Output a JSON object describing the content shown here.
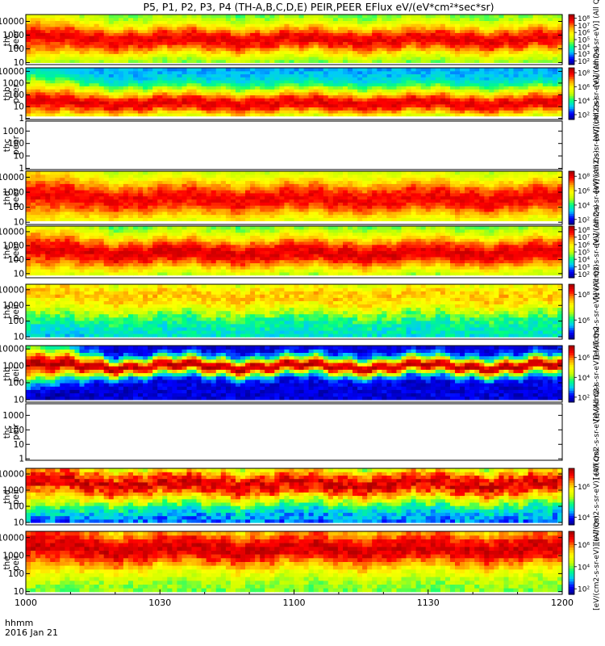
{
  "chart_data": {
    "type": "heatmap",
    "title": "P5, P1, P2, P3, P4 (TH-A,B,C,D,E) PEIR,PEER EFlux eV/(eV*cm²*sec*sr)",
    "x_axis": {
      "label_line1": "hhmm",
      "label_line2": "2016 Jan 21",
      "ticks": [
        "1000",
        "1030",
        "1100",
        "1130",
        "1200"
      ],
      "range_minutes": [
        0,
        120
      ]
    },
    "colorbar_units_lines": [
      "[eV/(cm2-s-sr-eV)] (All Qs)",
      "[eV/(cm2-s-sr-eV)] (All Qs)",
      "[eV/(cm2-s-sr-eV)] (All Qs)",
      "[eV/(cm2-s-sr-eV)] (All Qs)",
      "[eV/(cm2-s-sr-eV)] (All Qs)",
      "[eV/(cm2-s-sr-eV)] (All Qs)",
      "[eV/(cm2-s-sr-eV)] (All Qs)",
      "[eV/(cm2-s-sr-eV)] (All Qs)",
      "[eV/(cm2-s-sr-eV)] (All Qs)",
      "[eV/(cm2-s-sr-eV)] (All Qs)"
    ],
    "colormap": [
      "#000080",
      "#0000ff",
      "#00c8ff",
      "#00ff80",
      "#c8ff00",
      "#ffff00",
      "#ffa000",
      "#ff0000",
      "#a00000"
    ],
    "panels": [
      {
        "id": "thc-peer",
        "probe": "thc",
        "species": "peer",
        "y_ticks": [
          [
            "10000",
            4
          ],
          [
            "1000",
            3
          ],
          [
            "100",
            2
          ],
          [
            "10",
            1
          ]
        ],
        "y_range_log": [
          0.85,
          4.5
        ],
        "cbar_ticks": [
          [
            "10⁸",
            8
          ],
          [
            "10⁷",
            7
          ],
          [
            "10⁶",
            6
          ],
          [
            "10⁵",
            5
          ],
          [
            "10⁴",
            4
          ],
          [
            "10³",
            3
          ],
          [
            "10²",
            2
          ]
        ],
        "cbar_range": [
          1.5,
          8.5
        ],
        "has_data": true,
        "peak_level": 7.8,
        "peak_logE": 2.7,
        "width": 1.2,
        "low_band": 4.2,
        "floor_logE": 1.0
      },
      {
        "id": "thb-peer",
        "probe": "thb",
        "species": "peer",
        "y_ticks": [
          [
            "10000",
            4
          ],
          [
            "1000",
            3
          ],
          [
            "100",
            2
          ],
          [
            "10",
            1
          ],
          [
            "1",
            0
          ]
        ],
        "y_range_log": [
          -0.1,
          4.3
        ],
        "cbar_ticks": [
          [
            "10⁸",
            8
          ],
          [
            "10⁶",
            6
          ],
          [
            "10⁴",
            4
          ],
          [
            "10²",
            2
          ]
        ],
        "cbar_range": [
          1.3,
          8.7
        ],
        "has_data": true,
        "peak_level": 8.0,
        "peak_logE": 1.3,
        "width": 1.3,
        "low_band": 3.0,
        "floor_logE": 0.2
      },
      {
        "id": "thc-peer-empty",
        "probe": "thc",
        "species": "peer",
        "y_ticks": [
          [
            "1000",
            3
          ],
          [
            "100",
            2
          ],
          [
            "10",
            1
          ],
          [
            "1",
            0
          ]
        ],
        "y_range_log": [
          -0.1,
          3.8
        ],
        "cbar_ticks": [],
        "cbar_range": [
          0,
          1
        ],
        "has_data": false
      },
      {
        "id": "thd-peer",
        "probe": "thd",
        "species": "peer",
        "y_ticks": [
          [
            "10000",
            4
          ],
          [
            "1000",
            3
          ],
          [
            "100",
            2
          ],
          [
            "10",
            1
          ]
        ],
        "y_range_log": [
          0.85,
          4.4
        ],
        "cbar_ticks": [
          [
            "10⁸",
            8
          ],
          [
            "10⁶",
            6
          ],
          [
            "10⁴",
            4
          ],
          [
            "10²",
            2
          ]
        ],
        "cbar_range": [
          1.3,
          8.7
        ],
        "has_data": true,
        "peak_level": 7.9,
        "peak_logE": 2.6,
        "width": 1.4,
        "low_band": 4.5,
        "floor_logE": 1.1
      },
      {
        "id": "the-peer",
        "probe": "the",
        "species": "peer",
        "y_ticks": [
          [
            "10000",
            4
          ],
          [
            "1000",
            3
          ],
          [
            "100",
            2
          ],
          [
            "10",
            1
          ]
        ],
        "y_range_log": [
          0.7,
          4.4
        ],
        "cbar_ticks": [
          [
            "10⁸",
            8
          ],
          [
            "10⁷",
            7
          ],
          [
            "10⁶",
            6
          ],
          [
            "10⁵",
            5
          ],
          [
            "10⁴",
            4
          ],
          [
            "10³",
            3
          ],
          [
            "10²",
            2
          ]
        ],
        "cbar_range": [
          1.5,
          8.5
        ],
        "has_data": true,
        "peak_level": 7.9,
        "peak_logE": 2.5,
        "width": 1.4,
        "low_band": 4.0,
        "floor_logE": 0.9
      },
      {
        "id": "tha-peir",
        "probe": "tha",
        "species": "peir",
        "y_ticks": [
          [
            "10000",
            4
          ],
          [
            "1000",
            3
          ],
          [
            "100",
            2
          ],
          [
            "10",
            1
          ]
        ],
        "y_range_log": [
          0.85,
          4.35
        ],
        "cbar_ticks": [
          [
            "10⁸",
            8
          ],
          [
            "10⁶",
            6
          ]
        ],
        "cbar_range": [
          4.5,
          8.8
        ],
        "has_data": true,
        "peak_level": 7.5,
        "peak_logE": 3.6,
        "width": 1.2,
        "low_band": 5.8,
        "floor_logE": 1.0
      },
      {
        "id": "thb-peir",
        "probe": "thb",
        "species": "peir",
        "y_ticks": [
          [
            "10000",
            4
          ],
          [
            "1000",
            3
          ],
          [
            "100",
            2
          ],
          [
            "10",
            1
          ]
        ],
        "y_range_log": [
          0.85,
          4.2
        ],
        "cbar_ticks": [
          [
            "10⁶",
            6
          ],
          [
            "10⁴",
            4
          ],
          [
            "10²",
            2
          ]
        ],
        "cbar_range": [
          1.5,
          7.2
        ],
        "has_data": true,
        "peak_level": 7.0,
        "peak_logE": 3.0,
        "width": 0.5,
        "low_band": 2.0,
        "floor_logE": 1.0
      },
      {
        "id": "thc-peir",
        "probe": "thc",
        "species": "peir",
        "y_ticks": [
          [
            "1000",
            3
          ],
          [
            "100",
            2
          ],
          [
            "10",
            1
          ],
          [
            "1",
            0
          ]
        ],
        "y_range_log": [
          -0.1,
          3.8
        ],
        "cbar_ticks": [],
        "cbar_range": [
          0,
          1
        ],
        "has_data": false
      },
      {
        "id": "thd-peir",
        "probe": "thd",
        "species": "peir",
        "y_ticks": [
          [
            "10000",
            4
          ],
          [
            "1000",
            3
          ],
          [
            "100",
            2
          ],
          [
            "10",
            1
          ]
        ],
        "y_range_log": [
          0.85,
          4.35
        ],
        "cbar_ticks": [
          [
            "10⁶",
            6
          ],
          [
            "10⁴",
            4
          ]
        ],
        "cbar_range": [
          3.5,
          7.2
        ],
        "has_data": true,
        "peak_level": 6.9,
        "peak_logE": 3.4,
        "width": 1.2,
        "low_band": 4.2,
        "floor_logE": 1.0
      },
      {
        "id": "the-peir",
        "probe": "the",
        "species": "peir",
        "y_ticks": [
          [
            "10000",
            4
          ],
          [
            "1000",
            3
          ],
          [
            "100",
            2
          ],
          [
            "10",
            1
          ]
        ],
        "y_range_log": [
          0.85,
          4.35
        ],
        "cbar_ticks": [
          [
            "10⁶",
            6
          ],
          [
            "10⁴",
            4
          ],
          [
            "10²",
            2
          ]
        ],
        "cbar_range": [
          1.5,
          7.2
        ],
        "has_data": true,
        "peak_level": 6.8,
        "peak_logE": 3.4,
        "width": 1.2,
        "low_band": 4.0,
        "floor_logE": 1.0
      }
    ]
  }
}
